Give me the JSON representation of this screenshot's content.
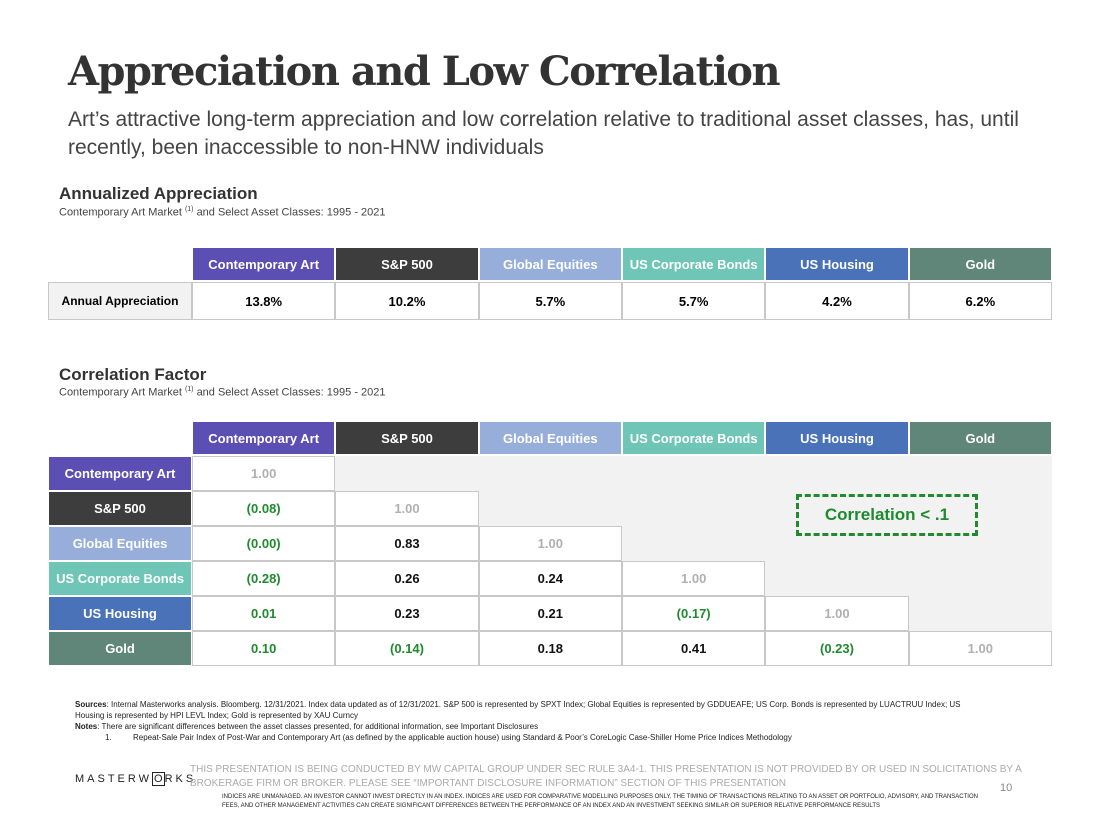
{
  "title": "Appreciation and Low Correlation",
  "subtitle": "Art’s attractive long-term appreciation and low correlation relative to traditional asset classes, has, until recently, been inaccessible to non-HNW individuals",
  "columns": [
    {
      "label": "Contemporary Art",
      "color": "#5b4fb3",
      "text_color": "#ffffff"
    },
    {
      "label": "S&P 500",
      "color": "#3d3d3d",
      "text_color": "#ffffff"
    },
    {
      "label": "Global Equities",
      "color": "#97aedb",
      "text_color": "#ffffff"
    },
    {
      "label": "US Corporate Bonds",
      "color": "#6fc6b6",
      "text_color": "#ffffff"
    },
    {
      "label": "US Housing",
      "color": "#4a72b9",
      "text_color": "#ffffff"
    },
    {
      "label": "Gold",
      "color": "#5f8678",
      "text_color": "#ffffff"
    }
  ],
  "appreciation": {
    "heading": "Annualized Appreciation",
    "caption": {
      "pre": "Contemporary Art Market",
      "sup": "(1)",
      "post": "and Select Asset Classes: 1995 - 2021"
    },
    "row_label": "Annual Appreciation",
    "values": [
      "13.8%",
      "10.2%",
      "5.7%",
      "5.7%",
      "4.2%",
      "6.2%"
    ]
  },
  "correlation": {
    "heading": "Correlation Factor",
    "caption": {
      "pre": "Contemporary Art Market",
      "sup": "(1)",
      "post": "and Select Asset Classes: 1995 - 2021"
    },
    "tones": {
      "self": "#b0b0b0",
      "low": "#1f8a2e",
      "normal": "#111111"
    },
    "rows": [
      [
        {
          "text": "1.00",
          "tone": "self"
        }
      ],
      [
        {
          "text": "(0.08)",
          "tone": "low"
        },
        {
          "text": "1.00",
          "tone": "self"
        }
      ],
      [
        {
          "text": "(0.00)",
          "tone": "low"
        },
        {
          "text": "0.83",
          "tone": "normal"
        },
        {
          "text": "1.00",
          "tone": "self"
        }
      ],
      [
        {
          "text": "(0.28)",
          "tone": "low"
        },
        {
          "text": "0.26",
          "tone": "normal"
        },
        {
          "text": "0.24",
          "tone": "normal"
        },
        {
          "text": "1.00",
          "tone": "self"
        }
      ],
      [
        {
          "text": "0.01",
          "tone": "low"
        },
        {
          "text": "0.23",
          "tone": "normal"
        },
        {
          "text": "0.21",
          "tone": "normal"
        },
        {
          "text": "(0.17)",
          "tone": "low"
        },
        {
          "text": "1.00",
          "tone": "self"
        }
      ],
      [
        {
          "text": "0.10",
          "tone": "low"
        },
        {
          "text": "(0.14)",
          "tone": "low"
        },
        {
          "text": "0.18",
          "tone": "normal"
        },
        {
          "text": "0.41",
          "tone": "normal"
        },
        {
          "text": "(0.23)",
          "tone": "low"
        },
        {
          "text": "1.00",
          "tone": "self"
        }
      ]
    ],
    "callout": "Correlation < .1"
  },
  "footnotes": {
    "sources_label": "Sources",
    "sources_text": ": Internal Masterworks analysis. Bloomberg. 12/31/2021. Index data updated as of 12/31/2021. S&P 500 is represented by SPXT Index; Global Equities is represented by GDDUEAFE; US Corp. Bonds is represented by LUACTRUU Index; US Housing is represented by HPI LEVL Index; Gold is represented by XAU Curncy",
    "notes_label": "Notes",
    "notes_text": ": There are significant differences between the asset classes presented, for additional information, see Important Disclosures",
    "item_number": "1.",
    "item_text": "Repeat-Sale Pair Index of Post-War and Contemporary Art (as defined by the applicable auction house) using Standard & Poor’s CoreLogic Case-Shiller Home Price Indices Methodology"
  },
  "footer": {
    "logo": [
      "MASTERW",
      "O",
      "RKS"
    ],
    "notice": "THIS PRESENTATION IS BEING CONDUCTED BY MW CAPITAL GROUP UNDER SEC RULE 3A4-1. THIS PRESENTATION IS NOT PROVIDED BY OR USED IN SOLICITATIONS BY A BROKERAGE FIRM OR BROKER. PLEASE SEE “IMPORTANT DISCLOSURE INFORMATION” SECTION OF THIS PRESENTATION",
    "disclaimer": "INDICES ARE UNMANAGED. AN INVESTOR CANNOT INVEST DIRECTLY IN AN INDEX. INDICES ARE USED FOR COMPARATIVE MODELLING PURPOSES ONLY. THE TIMING OF TRANSACTIONS RELATING TO AN ASSET OR PORTFOLIO, ADVISORY, AND TRANSACTION FEES, AND OTHER MANAGEMENT ACTIVITIES CAN CREATE SIGNIFICANT DIFFERENCES BETWEEN THE PERFORMANCE OF AN INDEX AND AN INVESTMENT SEEKING SIMILAR OR SUPERIOR RELATIVE PERFORMANCE RESULTS",
    "page": "10"
  }
}
